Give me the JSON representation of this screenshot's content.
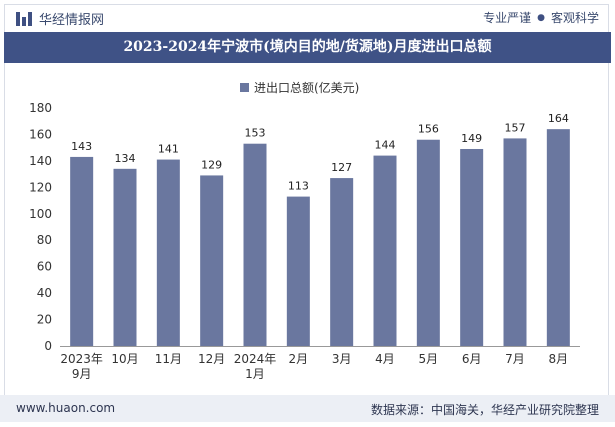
{
  "brand": {
    "name": "华经情报网",
    "tagline_left": "专业严谨",
    "tagline_right": "客观科学"
  },
  "title": "2023-2024年宁波市(境内目的地/货源地)月度进出口总额",
  "footer": {
    "website": "www.huaon.com",
    "source": "数据来源：中国海关，华经产业研究院整理"
  },
  "colors": {
    "bar": "#6a779f",
    "title_bg": "#3f5286"
  },
  "chart_data": {
    "type": "bar",
    "title": "2023-2024年宁波市(境内目的地/货源地)月度进出口总额",
    "categories": [
      "2023年\n9月",
      "10月",
      "11月",
      "12月",
      "2024年\n1月",
      "2月",
      "3月",
      "4月",
      "5月",
      "6月",
      "7月",
      "8月"
    ],
    "series": [
      {
        "name": "进出口总额(亿美元)",
        "values": [
          143,
          134,
          141,
          129,
          153,
          113,
          127,
          144,
          156,
          149,
          157,
          164
        ]
      }
    ],
    "ylim": [
      0,
      180
    ],
    "yticks": [
      0,
      20,
      40,
      60,
      80,
      100,
      120,
      140,
      160,
      180
    ],
    "xlabel": "",
    "ylabel": "",
    "legend_position": "top-center",
    "grid": false
  }
}
